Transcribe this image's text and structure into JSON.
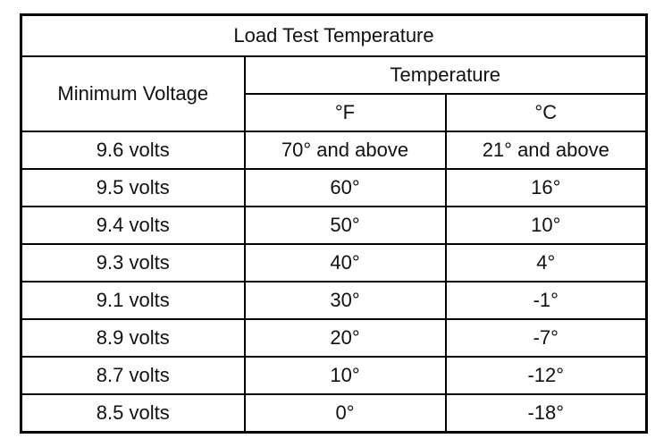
{
  "table": {
    "title": "Load Test Temperature",
    "header": {
      "first": "Minimum Voltage",
      "group": "Temperature",
      "sub": [
        "°F",
        "°C"
      ]
    },
    "rows": [
      [
        "9.6 volts",
        "70° and above",
        "21° and above"
      ],
      [
        "9.5 volts",
        "60°",
        "16°"
      ],
      [
        "9.4 volts",
        "50°",
        "10°"
      ],
      [
        "9.3 volts",
        "40°",
        "4°"
      ],
      [
        "9.1 volts",
        "30°",
        "-1°"
      ],
      [
        "8.9 volts",
        "20°",
        "-7°"
      ],
      [
        "8.7 volts",
        "10°",
        "-12°"
      ],
      [
        "8.5 volts",
        "0°",
        "-18°"
      ]
    ]
  }
}
